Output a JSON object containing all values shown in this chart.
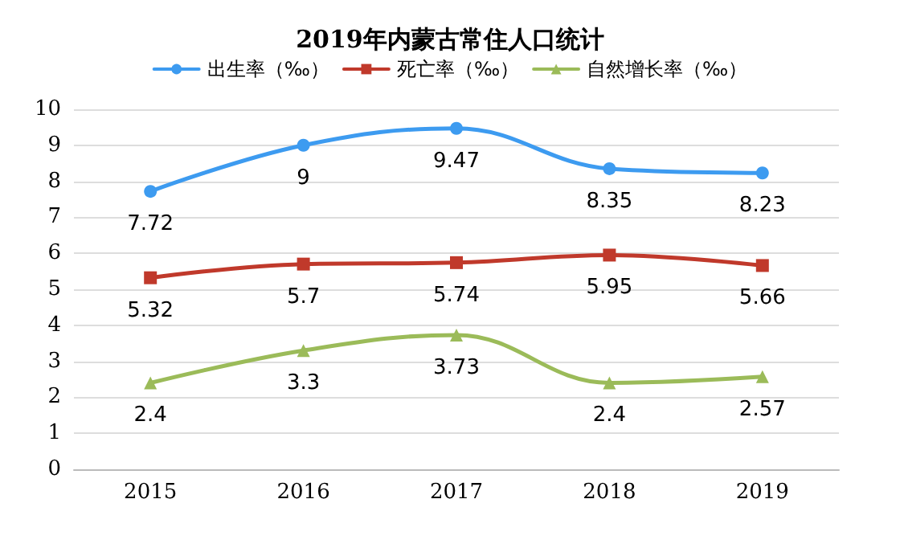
{
  "chart_data": {
    "type": "line",
    "title": "2019年内蒙古常住人口统计",
    "categories": [
      "2015",
      "2016",
      "2017",
      "2018",
      "2019"
    ],
    "series": [
      {
        "name": "出生率（‰）",
        "color": "#3d9bf0",
        "marker": "circle",
        "values": [
          7.72,
          9,
          9.47,
          8.35,
          8.23
        ]
      },
      {
        "name": "死亡率（‰）",
        "color": "#c0392b",
        "marker": "square",
        "values": [
          5.32,
          5.7,
          5.74,
          5.95,
          5.66
        ]
      },
      {
        "name": "自然增长率（‰）",
        "color": "#9bbb59",
        "marker": "triangle",
        "values": [
          2.4,
          3.3,
          3.73,
          2.4,
          2.57
        ]
      }
    ],
    "ylim": [
      0,
      10
    ],
    "yticks": [
      0,
      1,
      2,
      3,
      4,
      5,
      6,
      7,
      8,
      9,
      10
    ],
    "grid": "y",
    "legend": "top",
    "data_labels": true,
    "line_style": "solid"
  }
}
